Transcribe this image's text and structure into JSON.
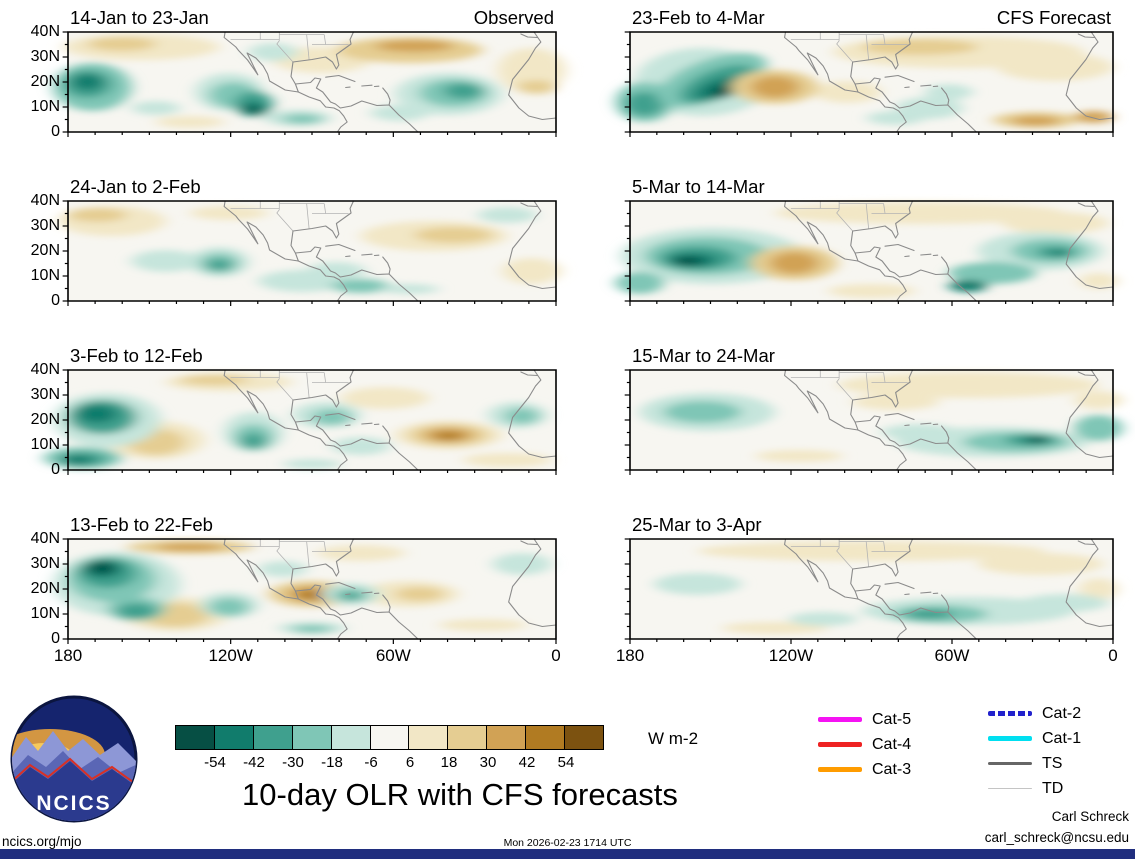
{
  "chart_data": {
    "type": "heatmap",
    "title": "10-day OLR with CFS forecasts",
    "units": "W m-2",
    "column_labels": [
      "Observed",
      "CFS Forecast"
    ],
    "x_ticks": [
      "180",
      "120W",
      "60W",
      "0"
    ],
    "y_ticks": [
      "40N",
      "30N",
      "20N",
      "10N",
      "0"
    ],
    "x_range_deg_west": [
      180,
      0
    ],
    "y_range_deg_north": [
      0,
      40
    ],
    "levels": [
      -54,
      -42,
      -30,
      -18,
      -6,
      6,
      18,
      30,
      42,
      54
    ],
    "colors": [
      "#064f44",
      "#117c6c",
      "#3fa08e",
      "#7fc6b6",
      "#c6e5dc",
      "#f7f6f1",
      "#f2e7c6",
      "#e5cd92",
      "#d1a255",
      "#b17b22",
      "#7c5210"
    ],
    "panels": [
      {
        "title": "14-Jan to 23-Jan",
        "corner": "Observed",
        "features": [
          [
            15,
            15,
            16,
            13,
            6
          ],
          [
            11,
            12,
            7,
            7,
            7
          ],
          [
            52,
            28,
            10,
            13,
            6
          ],
          [
            70,
            18,
            15,
            13,
            7
          ],
          [
            71,
            14,
            8,
            6,
            8
          ],
          [
            95,
            38,
            7,
            22,
            6
          ],
          [
            96,
            55,
            4,
            7,
            7
          ],
          [
            25,
            90,
            7,
            6,
            6
          ],
          [
            42,
            20,
            5,
            9,
            4
          ],
          [
            5,
            55,
            8,
            24,
            3
          ],
          [
            4,
            52,
            5,
            14,
            2
          ],
          [
            4,
            50,
            3,
            8,
            1
          ],
          [
            18,
            76,
            5,
            7,
            4
          ],
          [
            33,
            60,
            7,
            19,
            4
          ],
          [
            34,
            63,
            5,
            13,
            3
          ],
          [
            38,
            72,
            4,
            13,
            2
          ],
          [
            38,
            76,
            2.5,
            7,
            1
          ],
          [
            38,
            78,
            1.5,
            4,
            0
          ],
          [
            47,
            86,
            7,
            8,
            4
          ],
          [
            48,
            87,
            4,
            5,
            3
          ],
          [
            78,
            62,
            11,
            21,
            4
          ],
          [
            79,
            61,
            7,
            14,
            3
          ],
          [
            81,
            59,
            4,
            8,
            2
          ],
          [
            68,
            81,
            6,
            8,
            4
          ]
        ]
      },
      {
        "title": "23-Feb to 4-Mar",
        "corner": "CFS Forecast",
        "features": [
          [
            68,
            20,
            26,
            16,
            6
          ],
          [
            60,
            15,
            12,
            8,
            7
          ],
          [
            88,
            35,
            12,
            14,
            6
          ],
          [
            45,
            60,
            7,
            11,
            6
          ],
          [
            15,
            50,
            14,
            34,
            4
          ],
          [
            3,
            70,
            6,
            20,
            3
          ],
          [
            3,
            72,
            4,
            12,
            2
          ],
          [
            17,
            48,
            9,
            28,
            3,
            15
          ],
          [
            18,
            52,
            6,
            20,
            2,
            15
          ],
          [
            18,
            56,
            3.5,
            12,
            1,
            15
          ],
          [
            19,
            60,
            2,
            6,
            0
          ],
          [
            62,
            76,
            7,
            11,
            4
          ],
          [
            55,
            86,
            6,
            7,
            4
          ],
          [
            66,
            60,
            5,
            8,
            4
          ],
          [
            30,
            55,
            9,
            17,
            7
          ],
          [
            30,
            55,
            5,
            11,
            8
          ],
          [
            84,
            88,
            9,
            8,
            7
          ],
          [
            84,
            89,
            5,
            5,
            8
          ],
          [
            96,
            85,
            4,
            6,
            8
          ]
        ]
      },
      {
        "title": "24-Jan to 2-Feb",
        "corner": "",
        "features": [
          [
            9,
            20,
            11,
            15,
            6
          ],
          [
            6,
            14,
            6,
            7,
            7
          ],
          [
            75,
            35,
            15,
            15,
            6
          ],
          [
            79,
            34,
            8,
            8,
            7
          ],
          [
            95,
            70,
            6,
            13,
            6
          ],
          [
            33,
            12,
            8,
            7,
            6
          ],
          [
            20,
            60,
            7,
            11,
            4
          ],
          [
            31,
            61,
            6,
            15,
            4
          ],
          [
            31,
            62,
            4,
            10,
            3
          ],
          [
            31,
            64,
            2.5,
            6,
            2
          ],
          [
            48,
            80,
            9,
            11,
            4
          ],
          [
            55,
            70,
            6,
            9,
            4
          ],
          [
            60,
            85,
            6,
            7,
            3
          ],
          [
            90,
            14,
            6,
            8,
            4
          ],
          [
            70,
            88,
            6,
            5,
            4
          ]
        ]
      },
      {
        "title": "5-Mar to 14-Mar",
        "corner": "",
        "features": [
          [
            60,
            12,
            30,
            11,
            6
          ],
          [
            88,
            22,
            11,
            11,
            6
          ],
          [
            50,
            90,
            9,
            7,
            6
          ],
          [
            97,
            80,
            4,
            8,
            6
          ],
          [
            17,
            55,
            19,
            28,
            4
          ],
          [
            16,
            55,
            13,
            19,
            3
          ],
          [
            14,
            57,
            8,
            12,
            2
          ],
          [
            13,
            59,
            5,
            7,
            1
          ],
          [
            12,
            60,
            3,
            4,
            0
          ],
          [
            2,
            82,
            5,
            11,
            3
          ],
          [
            85,
            50,
            13,
            19,
            4
          ],
          [
            87,
            50,
            8,
            12,
            3
          ],
          [
            88,
            51,
            4,
            6,
            2
          ],
          [
            89,
            52,
            2,
            3,
            1
          ],
          [
            75,
            72,
            9,
            11,
            3
          ],
          [
            70,
            85,
            4,
            6,
            1
          ],
          [
            34,
            62,
            9,
            17,
            7
          ],
          [
            34,
            62,
            5,
            11,
            8
          ]
        ]
      },
      {
        "title": "3-Feb to 12-Feb",
        "corner": "",
        "features": [
          [
            33,
            12,
            13,
            9,
            6
          ],
          [
            30,
            10,
            7,
            5,
            7
          ],
          [
            65,
            28,
            9,
            11,
            6
          ],
          [
            18,
            70,
            10,
            19,
            6
          ],
          [
            18,
            72,
            6,
            13,
            7
          ],
          [
            90,
            90,
            9,
            7,
            6
          ],
          [
            78,
            65,
            11,
            14,
            6
          ],
          [
            78,
            65,
            8,
            11,
            7
          ],
          [
            78,
            65,
            5,
            7,
            8
          ],
          [
            78,
            66,
            2.8,
            4,
            9
          ],
          [
            8,
            50,
            11,
            27,
            4
          ],
          [
            7,
            47,
            7,
            17,
            2
          ],
          [
            6,
            44,
            4,
            9,
            1
          ],
          [
            3,
            88,
            8,
            11,
            3
          ],
          [
            3,
            89,
            5,
            7,
            2
          ],
          [
            2,
            90,
            3,
            5,
            1
          ],
          [
            38,
            62,
            6,
            20,
            4
          ],
          [
            38,
            67,
            4,
            13,
            3
          ],
          [
            38,
            71,
            2.5,
            8,
            2
          ],
          [
            53,
            45,
            7,
            13,
            4
          ],
          [
            54,
            47,
            4,
            8,
            3
          ],
          [
            60,
            76,
            6,
            9,
            4
          ],
          [
            92,
            45,
            6,
            13,
            4
          ],
          [
            93,
            46,
            3.5,
            8,
            3
          ],
          [
            50,
            94,
            6,
            5,
            4
          ]
        ]
      },
      {
        "title": "15-Mar to 24-Mar",
        "corner": "",
        "features": [
          [
            70,
            15,
            27,
            13,
            6
          ],
          [
            55,
            32,
            9,
            8,
            6
          ],
          [
            97,
            30,
            5,
            9,
            6
          ],
          [
            35,
            86,
            9,
            6,
            6
          ],
          [
            16,
            42,
            14,
            19,
            4
          ],
          [
            15,
            42,
            8,
            11,
            3
          ],
          [
            60,
            62,
            8,
            8,
            4
          ],
          [
            75,
            72,
            20,
            15,
            4
          ],
          [
            80,
            72,
            11,
            10,
            3
          ],
          [
            83,
            70,
            5.5,
            6,
            2
          ],
          [
            84,
            70,
            3,
            4,
            1
          ],
          [
            84.5,
            70,
            1.8,
            2.5,
            0
          ],
          [
            97,
            58,
            5,
            13,
            3
          ]
        ]
      },
      {
        "title": "13-Feb to 22-Feb",
        "corner": "",
        "features": [
          [
            25,
            8,
            13,
            7,
            7
          ],
          [
            25,
            8,
            7,
            4,
            8
          ],
          [
            60,
            14,
            9,
            8,
            6
          ],
          [
            22,
            75,
            11,
            17,
            6
          ],
          [
            22,
            76,
            7,
            12,
            7
          ],
          [
            70,
            55,
            10,
            13,
            6
          ],
          [
            72,
            55,
            5,
            7,
            7
          ],
          [
            85,
            86,
            9,
            6,
            6
          ],
          [
            50,
            55,
            9,
            13,
            7
          ],
          [
            50,
            55,
            5,
            8,
            8
          ],
          [
            50,
            56,
            3,
            5,
            9
          ],
          [
            10,
            45,
            13,
            32,
            4
          ],
          [
            9,
            40,
            9,
            23,
            3
          ],
          [
            8,
            34,
            6,
            15,
            2
          ],
          [
            7,
            30,
            4,
            9,
            1
          ],
          [
            7,
            29,
            2.5,
            5.5,
            0
          ],
          [
            14,
            70,
            6,
            12,
            3
          ],
          [
            14,
            72,
            4,
            8,
            2
          ],
          [
            33,
            66,
            6,
            13,
            4
          ],
          [
            33,
            68,
            4,
            9,
            3
          ],
          [
            58,
            55,
            6,
            11,
            4
          ],
          [
            58,
            56,
            3.5,
            7,
            3
          ],
          [
            58,
            57,
            2,
            4,
            2
          ],
          [
            50,
            89,
            7,
            6,
            4
          ],
          [
            50,
            90,
            4,
            4,
            3
          ],
          [
            93,
            25,
            6,
            11,
            4
          ],
          [
            44,
            30,
            5,
            8,
            4
          ]
        ]
      },
      {
        "title": "25-Mar to 3-Apr",
        "corner": "",
        "features": [
          [
            50,
            12,
            36,
            10,
            6
          ],
          [
            85,
            25,
            13,
            11,
            6
          ],
          [
            97,
            50,
            4,
            11,
            6
          ],
          [
            30,
            89,
            11,
            6,
            6
          ],
          [
            14,
            45,
            9,
            11,
            4
          ],
          [
            70,
            72,
            22,
            14,
            4
          ],
          [
            64,
            75,
            10,
            9,
            3
          ],
          [
            62,
            75,
            5,
            5,
            2
          ],
          [
            90,
            64,
            9,
            9,
            4
          ],
          [
            40,
            80,
            7,
            7,
            4
          ]
        ]
      }
    ]
  },
  "colorbar": {
    "tick_labels": [
      "-54",
      "-42",
      "-30",
      "-18",
      "-6",
      "6",
      "18",
      "30",
      "42",
      "54"
    ],
    "units": "W m-2"
  },
  "legend": {
    "col1": [
      {
        "label": "Cat-5",
        "color": "#f513f3",
        "h": 5
      },
      {
        "label": "Cat-4",
        "color": "#ee2222",
        "h": 5
      },
      {
        "label": "Cat-3",
        "color": "#ff9c00",
        "h": 5
      }
    ],
    "col2": [
      {
        "label": "Cat-2",
        "color": "#2222cc",
        "h": 5,
        "dash": true
      },
      {
        "label": "Cat-1",
        "color": "#00dff0",
        "h": 5
      },
      {
        "label": "TS",
        "color": "#666666",
        "h": 3
      },
      {
        "label": "TD",
        "color": "#c4c4c4",
        "h": 1.5
      }
    ]
  },
  "logo": {
    "text": "NCICS"
  },
  "footer": {
    "site": "ncics.org/mjo",
    "timestamp": "Mon 2026-02-23 1714 UTC",
    "credit_name": "Carl Schreck",
    "credit_email": "carl_schreck@ncsu.edu"
  }
}
